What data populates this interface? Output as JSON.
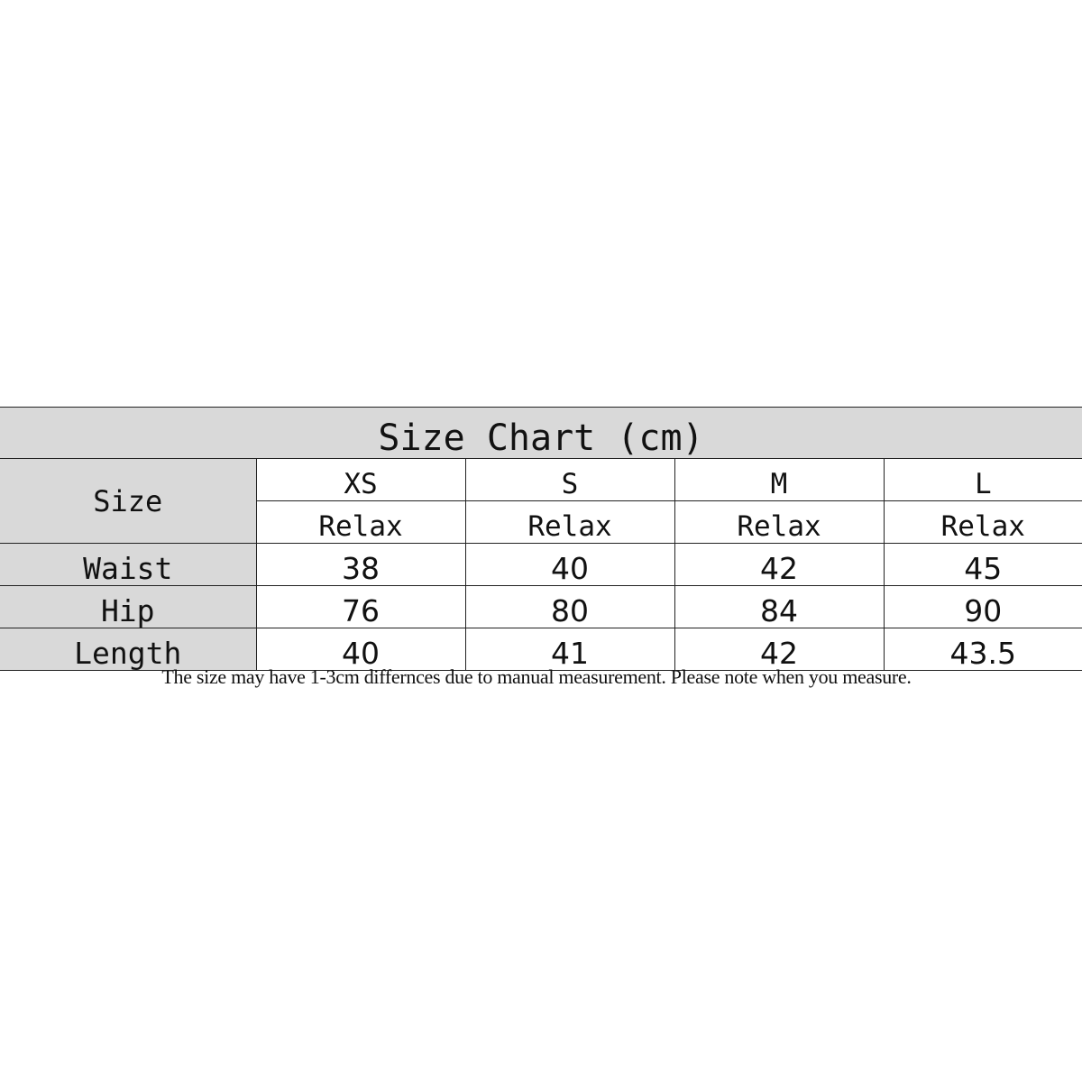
{
  "title": "Size Chart (cm)",
  "size_label": "Size",
  "sizes": [
    "XS",
    "S",
    "M",
    "L"
  ],
  "fit": [
    "Relax",
    "Relax",
    "Relax",
    "Relax"
  ],
  "rows": [
    {
      "label": "Waist",
      "values": [
        "38",
        "40",
        "42",
        "45"
      ]
    },
    {
      "label": "Hip",
      "values": [
        "76",
        "80",
        "84",
        "90"
      ]
    },
    {
      "label": "Length",
      "values": [
        "40",
        "41",
        "42",
        "43.5"
      ]
    }
  ],
  "note": "The size may have 1-3cm differnces due to manual measurement. Please note when you measure.",
  "colors": {
    "header_bg": "#d9d9d9",
    "border": "#222222"
  }
}
